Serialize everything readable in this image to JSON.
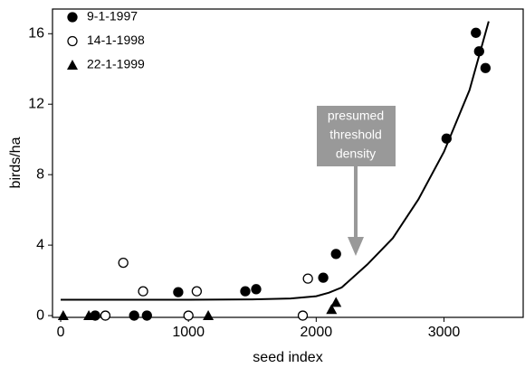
{
  "chart_data": {
    "type": "scatter",
    "xlabel": "seed index",
    "ylabel": "birds/ha",
    "xlim": [
      -64,
      3620
    ],
    "ylim": [
      -0.1,
      17.4
    ],
    "xticks": [
      0,
      1000,
      2000,
      3000
    ],
    "yticks": [
      0,
      4,
      8,
      12,
      16
    ],
    "legend": "upper-left",
    "series": [
      {
        "name": "9-1-1997",
        "marker": "circle",
        "color": "#000000",
        "x": [
          270,
          575,
          675,
          920,
          1445,
          1530,
          2055,
          2155,
          3020,
          3250,
          3275,
          3325
        ],
        "values": [
          0,
          0,
          0,
          1.33,
          1.38,
          1.5,
          2.15,
          3.5,
          10.05,
          16.05,
          15.0,
          14.05
        ]
      },
      {
        "name": "14-1-1998",
        "marker": "open-circle",
        "color": "#000000",
        "x": [
          350,
          490,
          645,
          1000,
          1065,
          1895,
          1935
        ],
        "values": [
          0,
          3.0,
          1.38,
          0,
          1.38,
          0,
          2.1
        ]
      },
      {
        "name": "22-1-1999",
        "marker": "triangle",
        "color": "#000000",
        "x": [
          20,
          220,
          1155,
          2120,
          2155
        ],
        "values": [
          0,
          0,
          0,
          0.35,
          0.75
        ]
      }
    ],
    "curve": {
      "color": "#000000",
      "x": [
        0,
        500,
        1000,
        1500,
        1800,
        2000,
        2100,
        2200,
        2400,
        2600,
        2800,
        3000,
        3200,
        3350
      ],
      "values": [
        0.9,
        0.9,
        0.9,
        0.92,
        0.97,
        1.1,
        1.3,
        1.6,
        2.9,
        4.4,
        6.6,
        9.3,
        12.8,
        16.7
      ]
    },
    "annotation": [
      "presumed",
      "threshold",
      "density"
    ]
  }
}
